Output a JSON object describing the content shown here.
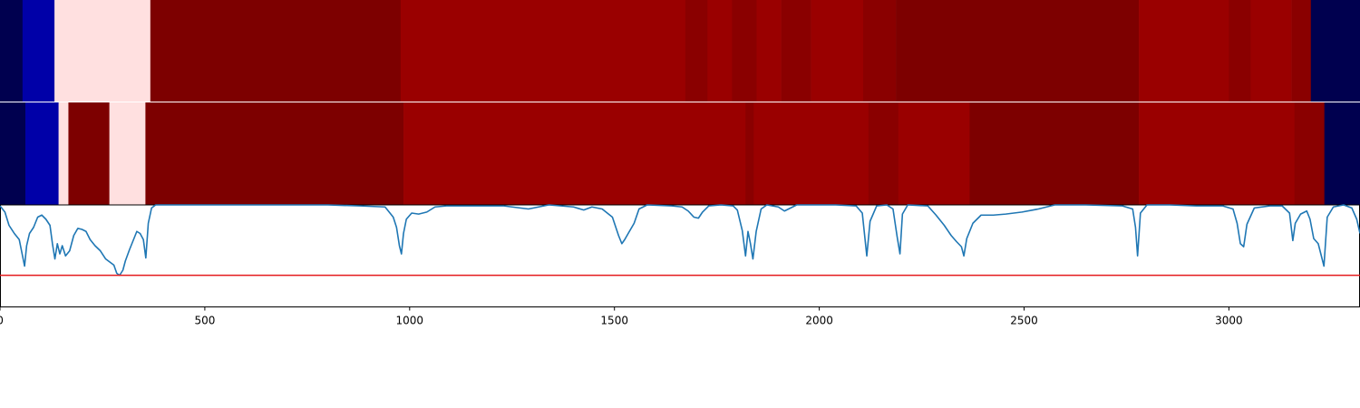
{
  "chart_data": {
    "type": "heatmap",
    "xlim": [
      0,
      3320
    ],
    "xticks": [
      0,
      500,
      1000,
      1500,
      2000,
      2500,
      3000
    ],
    "xtick_labels": [
      "0",
      "500",
      "1000",
      "1500",
      "2000",
      "2500",
      "3000"
    ],
    "grid": false,
    "legend": "none",
    "colors": {
      "c1": "#00004f",
      "c2": "#0000a8",
      "c3": "#ffe0e0",
      "c4": "#7d0000",
      "c5": "#9a0000",
      "c6": "#8a0000",
      "line": "#1f77b4",
      "threshold": "#e41a1c"
    },
    "tracks": [
      {
        "segments": [
          {
            "start": 0,
            "end": 55,
            "color": "c1"
          },
          {
            "start": 55,
            "end": 133,
            "color": "c2"
          },
          {
            "start": 133,
            "end": 367,
            "color": "c3"
          },
          {
            "start": 367,
            "end": 978,
            "color": "c4"
          },
          {
            "start": 978,
            "end": 1673,
            "color": "c5"
          },
          {
            "start": 1673,
            "end": 1727,
            "color": "c6"
          },
          {
            "start": 1727,
            "end": 1787,
            "color": "c5"
          },
          {
            "start": 1787,
            "end": 1847,
            "color": "c6"
          },
          {
            "start": 1847,
            "end": 1907,
            "color": "c5"
          },
          {
            "start": 1907,
            "end": 1980,
            "color": "c6"
          },
          {
            "start": 1980,
            "end": 2107,
            "color": "c5"
          },
          {
            "start": 2107,
            "end": 2187,
            "color": "c6"
          },
          {
            "start": 2187,
            "end": 2780,
            "color": "c4"
          },
          {
            "start": 2780,
            "end": 3000,
            "color": "c5"
          },
          {
            "start": 3000,
            "end": 3053,
            "color": "c6"
          },
          {
            "start": 3053,
            "end": 3153,
            "color": "c5"
          },
          {
            "start": 3153,
            "end": 3200,
            "color": "c6"
          },
          {
            "start": 3200,
            "end": 3320,
            "color": "c1"
          }
        ]
      },
      {
        "segments": [
          {
            "start": 0,
            "end": 62,
            "color": "c1"
          },
          {
            "start": 62,
            "end": 143,
            "color": "c2"
          },
          {
            "start": 143,
            "end": 167,
            "color": "c3"
          },
          {
            "start": 167,
            "end": 267,
            "color": "c4"
          },
          {
            "start": 267,
            "end": 355,
            "color": "c3"
          },
          {
            "start": 355,
            "end": 985,
            "color": "c4"
          },
          {
            "start": 985,
            "end": 1820,
            "color": "c5"
          },
          {
            "start": 1820,
            "end": 1840,
            "color": "c6"
          },
          {
            "start": 1840,
            "end": 2120,
            "color": "c5"
          },
          {
            "start": 2120,
            "end": 2193,
            "color": "c6"
          },
          {
            "start": 2193,
            "end": 2367,
            "color": "c5"
          },
          {
            "start": 2367,
            "end": 2780,
            "color": "c4"
          },
          {
            "start": 2780,
            "end": 3160,
            "color": "c5"
          },
          {
            "start": 3160,
            "end": 3233,
            "color": "c6"
          },
          {
            "start": 3233,
            "end": 3320,
            "color": "c1"
          }
        ]
      }
    ],
    "line_plot": {
      "ylim": [
        0,
        1
      ],
      "threshold": 0.31,
      "points": [
        [
          0,
          0.99
        ],
        [
          12,
          0.93
        ],
        [
          22,
          0.8
        ],
        [
          35,
          0.72
        ],
        [
          47,
          0.66
        ],
        [
          52,
          0.56
        ],
        [
          60,
          0.4
        ],
        [
          65,
          0.6
        ],
        [
          72,
          0.72
        ],
        [
          82,
          0.78
        ],
        [
          92,
          0.88
        ],
        [
          102,
          0.9
        ],
        [
          112,
          0.86
        ],
        [
          122,
          0.8
        ],
        [
          128,
          0.62
        ],
        [
          134,
          0.47
        ],
        [
          140,
          0.62
        ],
        [
          146,
          0.52
        ],
        [
          152,
          0.6
        ],
        [
          160,
          0.5
        ],
        [
          170,
          0.55
        ],
        [
          180,
          0.7
        ],
        [
          190,
          0.77
        ],
        [
          200,
          0.76
        ],
        [
          210,
          0.74
        ],
        [
          220,
          0.66
        ],
        [
          232,
          0.6
        ],
        [
          245,
          0.55
        ],
        [
          258,
          0.47
        ],
        [
          268,
          0.44
        ],
        [
          278,
          0.41
        ],
        [
          285,
          0.33
        ],
        [
          292,
          0.31
        ],
        [
          300,
          0.36
        ],
        [
          306,
          0.45
        ],
        [
          316,
          0.56
        ],
        [
          326,
          0.66
        ],
        [
          334,
          0.74
        ],
        [
          342,
          0.72
        ],
        [
          350,
          0.66
        ],
        [
          356,
          0.48
        ],
        [
          362,
          0.82
        ],
        [
          370,
          0.97
        ],
        [
          380,
          1
        ],
        [
          420,
          1
        ],
        [
          600,
          1
        ],
        [
          800,
          1
        ],
        [
          880,
          0.99
        ],
        [
          940,
          0.98
        ],
        [
          960,
          0.88
        ],
        [
          968,
          0.78
        ],
        [
          975,
          0.6
        ],
        [
          980,
          0.52
        ],
        [
          985,
          0.72
        ],
        [
          992,
          0.86
        ],
        [
          1005,
          0.92
        ],
        [
          1022,
          0.91
        ],
        [
          1042,
          0.93
        ],
        [
          1062,
          0.98
        ],
        [
          1090,
          0.99
        ],
        [
          1150,
          0.99
        ],
        [
          1230,
          0.99
        ],
        [
          1290,
          0.96
        ],
        [
          1340,
          1
        ],
        [
          1400,
          0.98
        ],
        [
          1425,
          0.95
        ],
        [
          1445,
          0.98
        ],
        [
          1470,
          0.96
        ],
        [
          1495,
          0.88
        ],
        [
          1510,
          0.7
        ],
        [
          1518,
          0.62
        ],
        [
          1525,
          0.66
        ],
        [
          1535,
          0.73
        ],
        [
          1548,
          0.82
        ],
        [
          1560,
          0.96
        ],
        [
          1580,
          1
        ],
        [
          1640,
          0.99
        ],
        [
          1665,
          0.98
        ],
        [
          1680,
          0.94
        ],
        [
          1694,
          0.88
        ],
        [
          1705,
          0.87
        ],
        [
          1715,
          0.93
        ],
        [
          1730,
          0.99
        ],
        [
          1760,
          1
        ],
        [
          1790,
          0.99
        ],
        [
          1800,
          0.95
        ],
        [
          1812,
          0.75
        ],
        [
          1820,
          0.5
        ],
        [
          1826,
          0.74
        ],
        [
          1832,
          0.62
        ],
        [
          1838,
          0.47
        ],
        [
          1846,
          0.74
        ],
        [
          1858,
          0.96
        ],
        [
          1872,
          1
        ],
        [
          1900,
          0.98
        ],
        [
          1915,
          0.94
        ],
        [
          1930,
          0.97
        ],
        [
          1945,
          1
        ],
        [
          2040,
          1
        ],
        [
          2090,
          0.99
        ],
        [
          2105,
          0.92
        ],
        [
          2116,
          0.5
        ],
        [
          2124,
          0.84
        ],
        [
          2140,
          0.99
        ],
        [
          2165,
          1
        ],
        [
          2180,
          0.96
        ],
        [
          2190,
          0.69
        ],
        [
          2197,
          0.52
        ],
        [
          2203,
          0.91
        ],
        [
          2216,
          1
        ],
        [
          2265,
          0.99
        ],
        [
          2285,
          0.9
        ],
        [
          2305,
          0.8
        ],
        [
          2322,
          0.7
        ],
        [
          2335,
          0.64
        ],
        [
          2347,
          0.59
        ],
        [
          2353,
          0.5
        ],
        [
          2360,
          0.67
        ],
        [
          2375,
          0.82
        ],
        [
          2395,
          0.9
        ],
        [
          2425,
          0.9
        ],
        [
          2455,
          0.91
        ],
        [
          2495,
          0.93
        ],
        [
          2535,
          0.96
        ],
        [
          2575,
          1
        ],
        [
          2650,
          1
        ],
        [
          2740,
          0.99
        ],
        [
          2765,
          0.96
        ],
        [
          2772,
          0.78
        ],
        [
          2777,
          0.5
        ],
        [
          2784,
          0.92
        ],
        [
          2800,
          1
        ],
        [
          2855,
          1
        ],
        [
          2920,
          0.99
        ],
        [
          2985,
          0.99
        ],
        [
          3010,
          0.96
        ],
        [
          3020,
          0.82
        ],
        [
          3028,
          0.62
        ],
        [
          3036,
          0.59
        ],
        [
          3044,
          0.81
        ],
        [
          3062,
          0.97
        ],
        [
          3100,
          0.99
        ],
        [
          3130,
          0.99
        ],
        [
          3148,
          0.92
        ],
        [
          3156,
          0.65
        ],
        [
          3162,
          0.82
        ],
        [
          3175,
          0.91
        ],
        [
          3190,
          0.94
        ],
        [
          3198,
          0.86
        ],
        [
          3207,
          0.67
        ],
        [
          3218,
          0.62
        ],
        [
          3225,
          0.51
        ],
        [
          3232,
          0.4
        ],
        [
          3240,
          0.88
        ],
        [
          3255,
          0.98
        ],
        [
          3280,
          1
        ],
        [
          3300,
          0.97
        ],
        [
          3312,
          0.86
        ],
        [
          3320,
          0.72
        ]
      ]
    }
  }
}
